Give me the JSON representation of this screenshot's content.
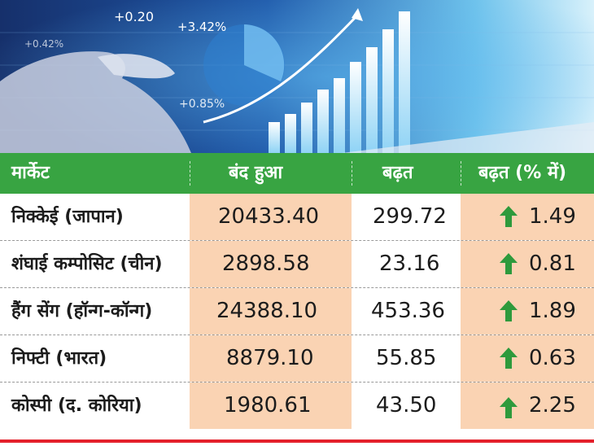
{
  "colors": {
    "header_bg": "#38a442",
    "highlight": "#fad3b3",
    "arrow": "#2e9a3c",
    "accent_line": "#e4202b"
  },
  "hero": {
    "overlay_numbers": [
      "+0.20",
      "+3.42%",
      "+0.85%",
      "+0.42%"
    ]
  },
  "table": {
    "headers": [
      "मार्केट",
      "बंद हुआ",
      "बढ़त",
      "बढ़त (% में)"
    ],
    "rows": [
      {
        "market": "निक्केई (जापान)",
        "close": "20433.40",
        "gain": "299.72",
        "pct": "1.49",
        "trend_icon": "up-arrow-icon"
      },
      {
        "market": "शंघाई कम्पोसिट (चीन)",
        "close": "2898.58",
        "gain": "23.16",
        "pct": "0.81",
        "trend_icon": "up-arrow-icon"
      },
      {
        "market": "हैंग सेंग (हॉन्ग-कॉन्ग)",
        "close": "24388.10",
        "gain": "453.36",
        "pct": "1.89",
        "trend_icon": "up-arrow-icon"
      },
      {
        "market": "निफ्टी (भारत)",
        "close": "8879.10",
        "gain": "55.85",
        "pct": "0.63",
        "trend_icon": "up-arrow-icon"
      },
      {
        "market": "कोस्पी (द. कोरिया)",
        "close": "1980.61",
        "gain": "43.50",
        "pct": "2.25",
        "trend_icon": "up-arrow-icon"
      }
    ]
  }
}
